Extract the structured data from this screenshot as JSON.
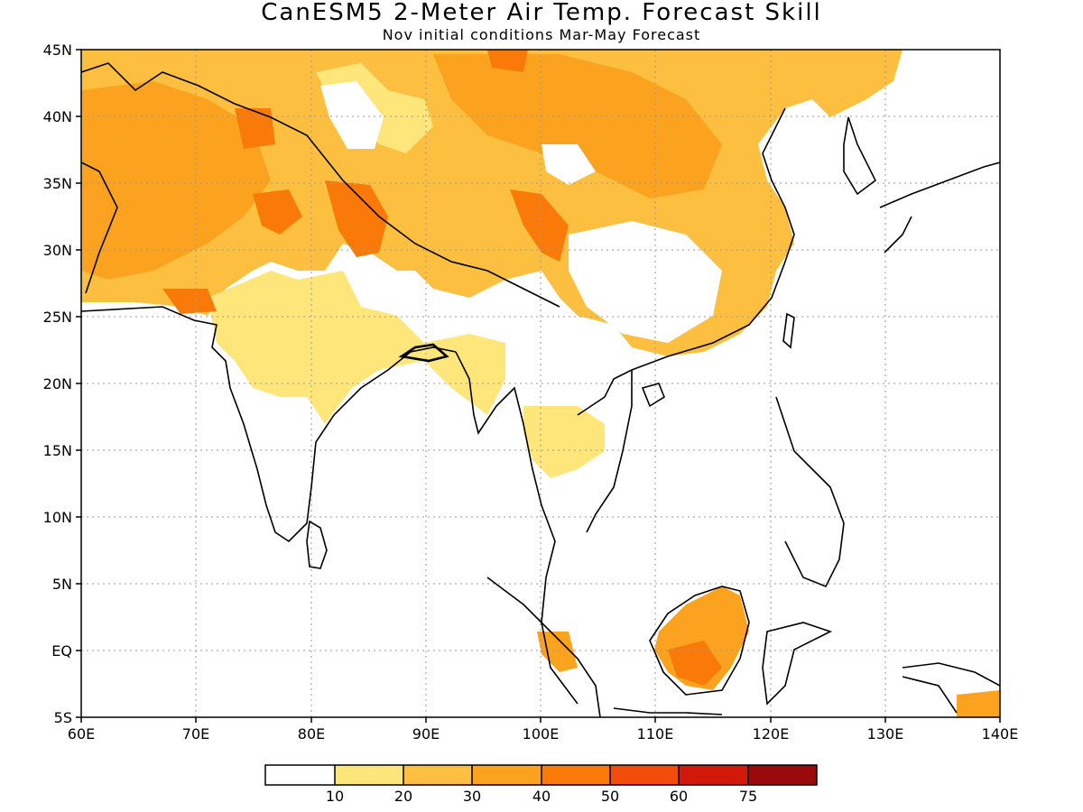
{
  "title": "CanESM5 2-Meter Air Temp. Forecast Skill",
  "subtitle": "Nov initial conditions  Mar-May Forecast",
  "map": {
    "lon_range": [
      60,
      140
    ],
    "lat_range": [
      -5,
      45
    ],
    "lon_ticks": [
      "60E",
      "70E",
      "80E",
      "90E",
      "100E",
      "110E",
      "120E",
      "130E",
      "140E"
    ],
    "lat_ticks": [
      "45N",
      "40N",
      "35N",
      "30N",
      "25N",
      "20N",
      "15N",
      "10N",
      "5N",
      "EQ",
      "5S"
    ],
    "grid": "dotted"
  },
  "colorbar": {
    "labels": [
      "10",
      "20",
      "30",
      "40",
      "50",
      "60",
      "75"
    ],
    "colors": [
      "#ffffff",
      "#ffe67a",
      "#fdbf3f",
      "#fba21f",
      "#f97a08",
      "#f24d0a",
      "#d11809",
      "#9b0a0a"
    ]
  }
}
